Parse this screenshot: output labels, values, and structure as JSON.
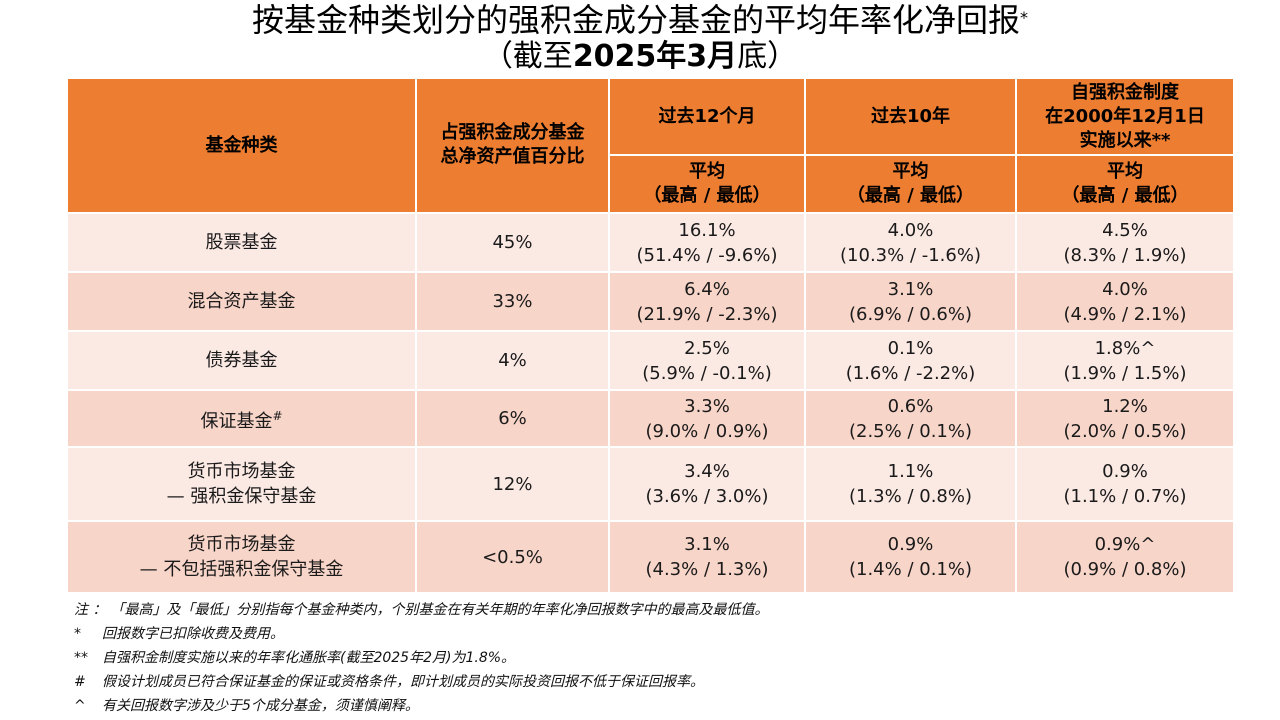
{
  "title": {
    "main": "按基金种类划分的强积金成分基金的平均年率化净回报",
    "mark": "*",
    "sub_open": "（截至",
    "sub_bold": "2025年3月",
    "sub_close": "底）"
  },
  "header": {
    "fund_type": "基金种类",
    "pct_line1": "占强积金成分基金",
    "pct_line2": "总净资产值百分比",
    "p12": "过去12个月",
    "p10": "过去10年",
    "since_line1": "自强积金制度",
    "since_line2": "在2000年12月1日",
    "since_line3": "实施以来**",
    "avg": "平均",
    "hilo": "（最高 / 最低）"
  },
  "rows": [
    {
      "name1": "股票基金",
      "name2": "",
      "mark": "",
      "pct": "45%",
      "m12_avg": "16.1%",
      "m12_range": "(51.4% / -9.6%)",
      "y10_avg": "4.0%",
      "y10_range": "(10.3% / -1.6%)",
      "since_avg": "4.5%",
      "since_range": "(8.3% / 1.9%)"
    },
    {
      "name1": "混合资产基金",
      "name2": "",
      "mark": "",
      "pct": "33%",
      "m12_avg": "6.4%",
      "m12_range": "(21.9% / -2.3%)",
      "y10_avg": "3.1%",
      "y10_range": "(6.9% / 0.6%)",
      "since_avg": "4.0%",
      "since_range": "(4.9% / 2.1%)"
    },
    {
      "name1": "债券基金",
      "name2": "",
      "mark": "",
      "pct": "4%",
      "m12_avg": "2.5%",
      "m12_range": "(5.9% / -0.1%)",
      "y10_avg": "0.1%",
      "y10_range": "(1.6% / -2.2%)",
      "since_avg": "1.8%^",
      "since_range": "(1.9% / 1.5%)"
    },
    {
      "name1": "保证基金",
      "name2": "",
      "mark": "#",
      "pct": "6%",
      "m12_avg": "3.3%",
      "m12_range": "(9.0% / 0.9%)",
      "y10_avg": "0.6%",
      "y10_range": "(2.5% / 0.1%)",
      "since_avg": "1.2%",
      "since_range": "(2.0% / 0.5%)"
    },
    {
      "name1": "货币市场基金",
      "name2": "— 强积金保守基金",
      "mark": "",
      "pct": "12%",
      "m12_avg": "3.4%",
      "m12_range": "(3.6% / 3.0%)",
      "y10_avg": "1.1%",
      "y10_range": "(1.3% / 0.8%)",
      "since_avg": "0.9%",
      "since_range": "(1.1% / 0.7%)"
    },
    {
      "name1": "货币市场基金",
      "name2": "— 不包括强积金保守基金",
      "mark": "",
      "pct": "<0.5%",
      "m12_avg": "3.1%",
      "m12_range": "(4.3% / 1.3%)",
      "y10_avg": "0.9%",
      "y10_range": "(1.4% / 0.1%)",
      "since_avg": "0.9%^",
      "since_range": "(0.9% / 0.8%)"
    }
  ],
  "notes": [
    {
      "mark": "注 ：",
      "text": "「最高」及「最低」分别指每个基金种类内，个别基金在有关年期的年率化净回报数字中的最高及最低值。"
    },
    {
      "mark": "*",
      "text": "回报数字已扣除收费及费用。"
    },
    {
      "mark": "**",
      "text": "自强积金制度实施以来的年率化通胀率(截至2025年2月)为1.8%。"
    },
    {
      "mark": "#",
      "text": "假设计划成员已符合保证基金的保证或资格条件，即计划成员的实际投资回报不低于保证回报率。"
    },
    {
      "mark": "^",
      "text": "有关回报数字涉及少于5个成分基金，须谨慎阐释。"
    }
  ],
  "colors": {
    "header": "#ed7d31",
    "row_light": "#fbe9e4",
    "row_dark": "#f8d5c9"
  }
}
